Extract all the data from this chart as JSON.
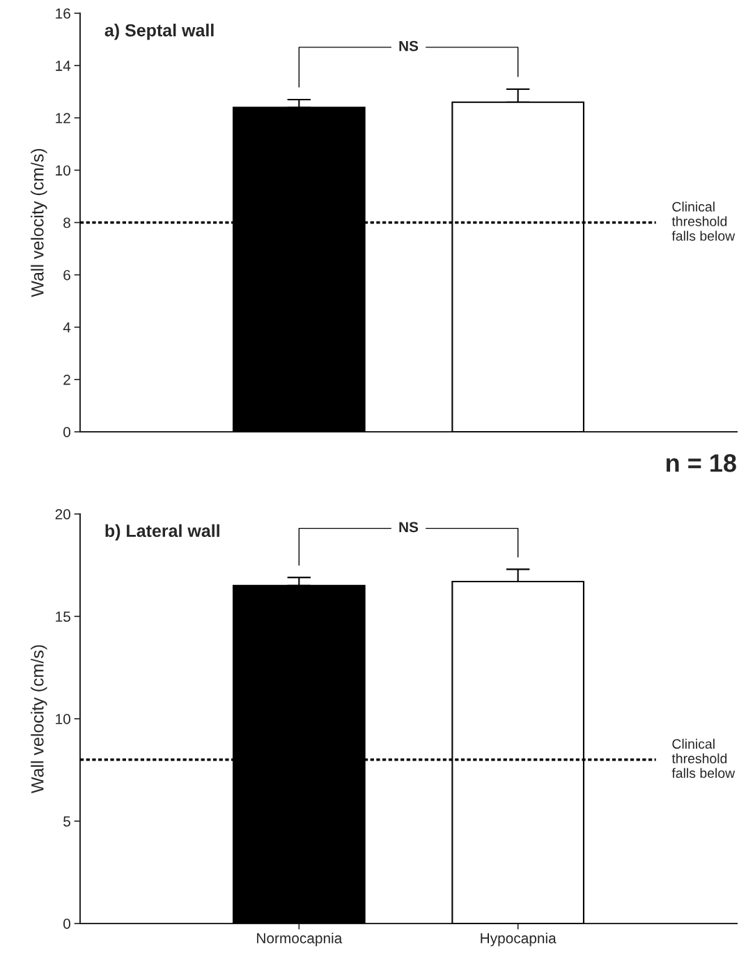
{
  "chart_data": [
    {
      "type": "bar",
      "title": "a) Septal wall",
      "ylabel": "Wall velocity (cm/s)",
      "categories": [
        null,
        null
      ],
      "values": [
        12.4,
        12.6
      ],
      "colors": [
        "#000000",
        "#ffffff"
      ],
      "errors": [
        [
          12.4,
          12.7
        ],
        [
          12.6,
          13.1
        ]
      ],
      "ylim": [
        0,
        16
      ],
      "yticks": [
        0,
        2,
        4,
        6,
        8,
        10,
        12,
        14,
        16
      ],
      "ref_lines": [
        {
          "axis": "y",
          "value": 8,
          "label": "Clinical\nthreshold\nfalls below",
          "line_style": "dotted",
          "color": "#000000"
        }
      ],
      "annotations": [
        "NS"
      ],
      "tick_labels": "y",
      "grid": false
    },
    {
      "type": "bar",
      "title": "b) Lateral wall",
      "ylabel": "Wall velocity (cm/s)",
      "categories": [
        "Normocapnia",
        "Hypocapnia"
      ],
      "values": [
        16.5,
        16.7
      ],
      "colors": [
        "#000000",
        "#ffffff"
      ],
      "errors": [
        [
          16.5,
          16.9
        ],
        [
          16.7,
          17.3
        ]
      ],
      "ylim": [
        0,
        20
      ],
      "yticks": [
        0,
        5,
        10,
        15,
        20
      ],
      "ref_lines": [
        {
          "axis": "y",
          "value": 8,
          "label": "Clinical\nthreshold\nfalls below",
          "line_style": "dotted",
          "color": "#000000"
        }
      ],
      "annotations": [
        "NS",
        "n = 18"
      ],
      "grid": false
    }
  ]
}
